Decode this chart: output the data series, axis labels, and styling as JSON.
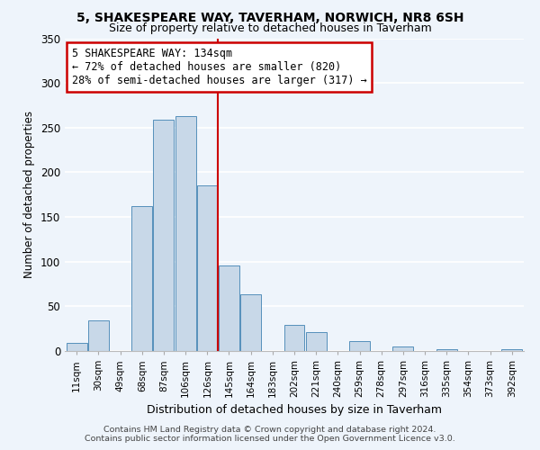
{
  "title": "5, SHAKESPEARE WAY, TAVERHAM, NORWICH, NR8 6SH",
  "subtitle": "Size of property relative to detached houses in Taverham",
  "xlabel": "Distribution of detached houses by size in Taverham",
  "ylabel": "Number of detached properties",
  "bin_labels": [
    "11sqm",
    "30sqm",
    "49sqm",
    "68sqm",
    "87sqm",
    "106sqm",
    "126sqm",
    "145sqm",
    "164sqm",
    "183sqm",
    "202sqm",
    "221sqm",
    "240sqm",
    "259sqm",
    "278sqm",
    "297sqm",
    "316sqm",
    "335sqm",
    "354sqm",
    "373sqm",
    "392sqm"
  ],
  "bar_heights": [
    9,
    34,
    0,
    162,
    259,
    263,
    185,
    96,
    63,
    0,
    29,
    21,
    0,
    11,
    0,
    5,
    0,
    2,
    0,
    0,
    2
  ],
  "bar_color": "#c8d8e8",
  "bar_edge_color": "#5590bb",
  "vline_x": 6.5,
  "vline_color": "#cc0000",
  "annotation_title": "5 SHAKESPEARE WAY: 134sqm",
  "annotation_line1": "← 72% of detached houses are smaller (820)",
  "annotation_line2": "28% of semi-detached houses are larger (317) →",
  "annotation_box_color": "#ffffff",
  "annotation_box_edge": "#cc0000",
  "ylim": [
    0,
    350
  ],
  "yticks": [
    0,
    50,
    100,
    150,
    200,
    250,
    300,
    350
  ],
  "footnote1": "Contains HM Land Registry data © Crown copyright and database right 2024.",
  "footnote2": "Contains public sector information licensed under the Open Government Licence v3.0.",
  "background_color": "#eef4fb"
}
